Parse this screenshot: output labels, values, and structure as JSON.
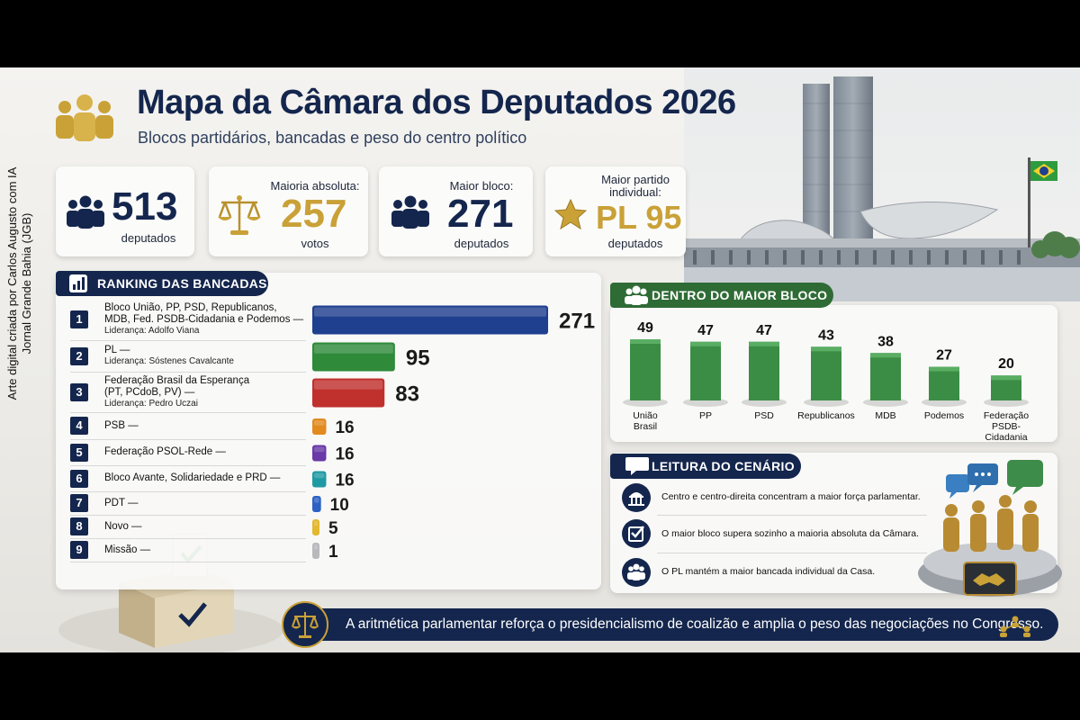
{
  "side_credit": {
    "line1": "Arte digital criada por Carlos Augusto com IA",
    "line2": "Jornal Grande Bahia (JGB)"
  },
  "header": {
    "title": "Mapa da Câmara dos Deputados 2026",
    "subtitle": "Blocos partidários, bancadas e peso do centro político"
  },
  "stats": [
    {
      "icon": "people-icon",
      "top_label": "",
      "value": "513",
      "bottom_label": "deputados",
      "value_color": "#14264d"
    },
    {
      "icon": "scales-icon",
      "top_label": "Maioria absoluta:",
      "value": "257",
      "bottom_label": "votos",
      "value_color": "#c9a137"
    },
    {
      "icon": "people-icon",
      "top_label": "Maior bloco:",
      "value": "271",
      "bottom_label": "deputados",
      "value_color": "#14264d"
    },
    {
      "icon": "star-icon",
      "top_label": "Maior partido individual:",
      "value": "PL 95",
      "bottom_label": "deputados",
      "value_color": "#c9a137"
    }
  ],
  "ranking": {
    "heading": "RANKING DAS BANCADAS",
    "rows": [
      {
        "rank": "1",
        "name_lines": [
          "Bloco União, PP, PSD, Republicanos,",
          "MDB, Fed. PSDB-Cidadania e Podemos —"
        ],
        "leader": "Liderança: Adolfo Viana",
        "value": "271",
        "color": "#1f3f8f"
      },
      {
        "rank": "2",
        "name_lines": [
          "PL —"
        ],
        "leader": "Liderança: Sóstenes Cavalcante",
        "value": "95",
        "color": "#2f8a3a"
      },
      {
        "rank": "3",
        "name_lines": [
          "Federação Brasil da Esperança",
          "(PT, PCdoB, PV) —"
        ],
        "leader": "Liderança: Pedro Uczai",
        "value": "83",
        "color": "#c0302c"
      },
      {
        "rank": "4",
        "name_lines": [
          "PSB —"
        ],
        "leader": "",
        "value": "16",
        "color": "#e28a1f"
      },
      {
        "rank": "5",
        "name_lines": [
          "Federação PSOL-Rede —"
        ],
        "leader": "",
        "value": "16",
        "color": "#6a3aa8"
      },
      {
        "rank": "6",
        "name_lines": [
          "Bloco Avante, Solidariedade e PRD —"
        ],
        "leader": "",
        "value": "16",
        "color": "#1f9aa3"
      },
      {
        "rank": "7",
        "name_lines": [
          "PDT —"
        ],
        "leader": "",
        "value": "10",
        "color": "#2b62c4"
      },
      {
        "rank": "8",
        "name_lines": [
          "Novo —"
        ],
        "leader": "",
        "value": "5",
        "color": "#e3b82e"
      },
      {
        "rank": "9",
        "name_lines": [
          "Missão —"
        ],
        "leader": "",
        "value": "1",
        "color": "#b9b9bd"
      }
    ]
  },
  "bloc": {
    "heading": "DENTRO DO MAIOR BLOCO",
    "bar_color": "#3b8d45"
  },
  "chart_data": [
    {
      "type": "bar",
      "title": "RANKING DAS BANCADAS",
      "orientation": "horizontal",
      "categories": [
        "Bloco União, PP, PSD, Republicanos, MDB, Fed. PSDB-Cidadania e Podemos",
        "PL",
        "Federação Brasil da Esperança (PT, PCdoB, PV)",
        "PSB",
        "Federação PSOL-Rede",
        "Bloco Avante, Solidariedade e PRD",
        "PDT",
        "Novo",
        "Missão"
      ],
      "values": [
        271,
        95,
        83,
        16,
        16,
        16,
        10,
        5,
        1
      ]
    },
    {
      "type": "bar",
      "title": "DENTRO DO MAIOR BLOCO",
      "categories": [
        "União Brasil",
        "PP",
        "PSD",
        "Republicanos",
        "MDB",
        "Podemos",
        "Federação PSDB-Cidadania"
      ],
      "category_lines": [
        [
          "União",
          "Brasil"
        ],
        [
          "PP"
        ],
        [
          "PSD"
        ],
        [
          "Republicanos"
        ],
        [
          "MDB"
        ],
        [
          "Podemos"
        ],
        [
          "Federação",
          "PSDB-",
          "Cidadania"
        ]
      ],
      "values": [
        49,
        47,
        47,
        43,
        38,
        27,
        20
      ]
    }
  ],
  "reading": {
    "heading": "LEITURA DO CENÁRIO",
    "items": [
      {
        "icon": "capitol-icon",
        "text": "Centro e centro-direita concentram a maior força parlamentar."
      },
      {
        "icon": "checkbox-icon",
        "text": "O maior bloco supera sozinho a maioria absoluta da Câmara."
      },
      {
        "icon": "people-icon",
        "text": "O PL mantém a maior bancada individual da Casa."
      }
    ]
  },
  "footer": {
    "text": "A aritmética parlamentar reforça o presidencialismo de coalizão e amplia o peso das negociações no Congresso."
  }
}
